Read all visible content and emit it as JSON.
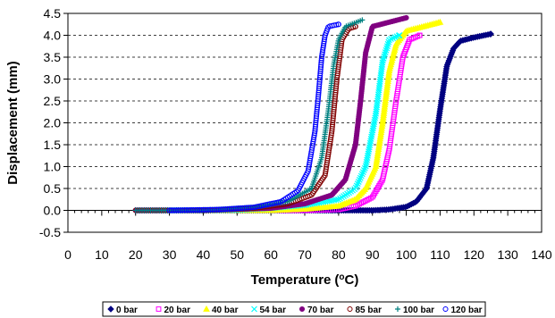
{
  "chart_data": {
    "type": "scatter",
    "xlabel": "Temperature",
    "xlabel_unit_prefix": "(",
    "xlabel_unit_sup": "o",
    "xlabel_unit_suffix": "C)",
    "ylabel": "Displacement (mm)",
    "xlim": [
      0,
      140
    ],
    "ylim": [
      -0.5,
      4.5
    ],
    "xticks": [
      0,
      10,
      20,
      30,
      40,
      50,
      60,
      70,
      80,
      90,
      100,
      110,
      120,
      130,
      140
    ],
    "yticks": [
      -0.5,
      0.0,
      0.5,
      1.0,
      1.5,
      2.0,
      2.5,
      3.0,
      3.5,
      4.0,
      4.5
    ],
    "xtick_labels": [
      "0",
      "10",
      "20",
      "30",
      "40",
      "50",
      "60",
      "70",
      "80",
      "90",
      "100",
      "110",
      "120",
      "130",
      "140"
    ],
    "ytick_labels": [
      "-0.5",
      "0.0",
      "0.5",
      "1.0",
      "1.5",
      "2.0",
      "2.5",
      "3.0",
      "3.5",
      "4.0",
      "4.5"
    ],
    "grid": "horizontal-dashed",
    "legend_position": "bottom",
    "series": [
      {
        "name": "0 bar",
        "color": "#000080",
        "marker": "diamond",
        "fill": true,
        "points": [
          [
            20,
            0.0
          ],
          [
            40,
            0.0
          ],
          [
            60,
            0.0
          ],
          [
            80,
            0.0
          ],
          [
            90,
            0.0
          ],
          [
            95,
            0.02
          ],
          [
            100,
            0.08
          ],
          [
            103,
            0.2
          ],
          [
            106,
            0.5
          ],
          [
            108,
            1.2
          ],
          [
            110,
            2.3
          ],
          [
            112,
            3.3
          ],
          [
            114,
            3.7
          ],
          [
            116,
            3.87
          ],
          [
            120,
            3.95
          ],
          [
            125,
            4.03
          ]
        ]
      },
      {
        "name": "20 bar",
        "color": "#FF00FF",
        "marker": "square",
        "fill": false,
        "points": [
          [
            30,
            0.0
          ],
          [
            50,
            0.0
          ],
          [
            60,
            0.0
          ],
          [
            70,
            0.0
          ],
          [
            80,
            0.02
          ],
          [
            85,
            0.1
          ],
          [
            90,
            0.3
          ],
          [
            93,
            0.7
          ],
          [
            95,
            1.4
          ],
          [
            97,
            2.5
          ],
          [
            99,
            3.5
          ],
          [
            101,
            3.9
          ],
          [
            104,
            4.0
          ]
        ]
      },
      {
        "name": "40 bar",
        "color": "#FFFF00",
        "marker": "triangle",
        "fill": true,
        "points": [
          [
            40,
            0.0
          ],
          [
            60,
            0.0
          ],
          [
            70,
            0.03
          ],
          [
            80,
            0.1
          ],
          [
            85,
            0.25
          ],
          [
            88,
            0.5
          ],
          [
            91,
            1.0
          ],
          [
            93,
            2.0
          ],
          [
            95,
            3.2
          ],
          [
            97,
            3.8
          ],
          [
            100,
            4.1
          ],
          [
            110,
            4.3
          ]
        ]
      },
      {
        "name": "54 bar",
        "color": "#00FFFF",
        "marker": "x",
        "fill": false,
        "points": [
          [
            30,
            0.0
          ],
          [
            50,
            0.01
          ],
          [
            60,
            0.05
          ],
          [
            70,
            0.12
          ],
          [
            80,
            0.25
          ],
          [
            85,
            0.5
          ],
          [
            88,
            1.0
          ],
          [
            91,
            2.2
          ],
          [
            93,
            3.4
          ],
          [
            95,
            3.9
          ],
          [
            98,
            4.0
          ]
        ]
      },
      {
        "name": "70 bar",
        "color": "#800080",
        "marker": "circle",
        "fill": true,
        "points": [
          [
            20,
            0.0
          ],
          [
            40,
            0.0
          ],
          [
            60,
            0.05
          ],
          [
            70,
            0.15
          ],
          [
            78,
            0.35
          ],
          [
            82,
            0.7
          ],
          [
            85,
            1.5
          ],
          [
            86.5,
            2.5
          ],
          [
            88,
            3.6
          ],
          [
            90,
            4.2
          ],
          [
            95,
            4.3
          ],
          [
            100,
            4.4
          ]
        ]
      },
      {
        "name": "85 bar",
        "color": "#800000",
        "marker": "circle",
        "fill": false,
        "points": [
          [
            20,
            0.0
          ],
          [
            40,
            0.0
          ],
          [
            55,
            0.05
          ],
          [
            65,
            0.15
          ],
          [
            72,
            0.35
          ],
          [
            76,
            0.8
          ],
          [
            78,
            1.8
          ],
          [
            79.5,
            3.0
          ],
          [
            81,
            3.9
          ],
          [
            83,
            4.15
          ],
          [
            85,
            4.2
          ]
        ]
      },
      {
        "name": "100 bar",
        "color": "#008080",
        "marker": "plus",
        "fill": false,
        "points": [
          [
            20,
            0.0
          ],
          [
            40,
            0.0
          ],
          [
            55,
            0.07
          ],
          [
            65,
            0.2
          ],
          [
            72,
            0.5
          ],
          [
            75,
            1.2
          ],
          [
            77,
            2.3
          ],
          [
            78.5,
            3.3
          ],
          [
            80,
            3.9
          ],
          [
            82,
            4.2
          ],
          [
            87,
            4.35
          ]
        ]
      },
      {
        "name": "120 bar",
        "color": "#0000FF",
        "marker": "circle",
        "fill": false,
        "points": [
          [
            30,
            0.0
          ],
          [
            45,
            0.02
          ],
          [
            55,
            0.07
          ],
          [
            63,
            0.2
          ],
          [
            68,
            0.45
          ],
          [
            71,
            0.9
          ],
          [
            73,
            1.8
          ],
          [
            74,
            2.6
          ],
          [
            75,
            3.5
          ],
          [
            76,
            4.0
          ],
          [
            77,
            4.2
          ],
          [
            80,
            4.25
          ]
        ]
      }
    ]
  }
}
